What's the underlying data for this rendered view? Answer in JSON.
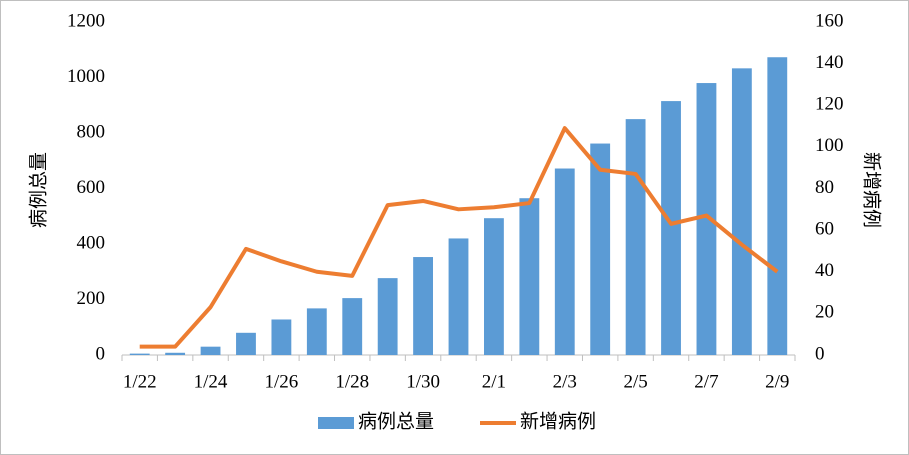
{
  "chart_data": {
    "type": "bar-line",
    "categories": [
      "1/22",
      null,
      "1/24",
      null,
      "1/26",
      null,
      "1/28",
      null,
      "1/30",
      null,
      "2/1",
      null,
      "2/3",
      null,
      "2/5",
      null,
      "2/7",
      null,
      "2/9"
    ],
    "y_label": "病例总量",
    "y2_label": "新增病例",
    "ylim": [
      0,
      1200
    ],
    "yticks": [
      0,
      200,
      400,
      600,
      800,
      1000,
      1200
    ],
    "y2lim": [
      0,
      160
    ],
    "y2ticks": [
      0,
      20,
      40,
      60,
      80,
      100,
      120,
      140,
      160
    ],
    "grid": false,
    "legend": "bottom",
    "series": [
      {
        "name": "病例总量",
        "type": "bar",
        "color": "#5b9bd5",
        "values": [
          5,
          8,
          30,
          80,
          128,
          168,
          205,
          277,
          353,
          420,
          493,
          565,
          672,
          762,
          850,
          915,
          980,
          1033,
          1073
        ]
      },
      {
        "name": "新增病例",
        "type": "line",
        "axis": "y2",
        "color": "#ed7d31",
        "values": [
          4,
          4,
          23,
          51,
          45,
          40,
          38,
          72,
          74,
          70,
          71,
          73,
          109,
          89,
          87,
          63,
          67,
          53,
          40
        ]
      }
    ]
  }
}
